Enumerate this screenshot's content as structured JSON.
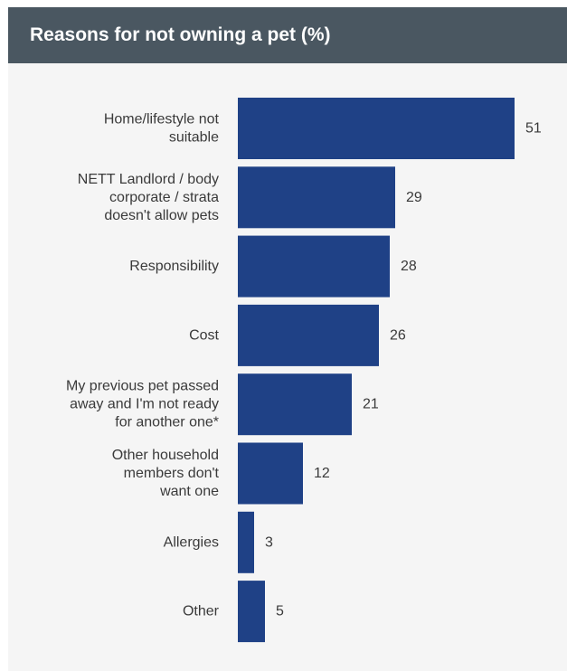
{
  "colors": {
    "header_background": "#4a5761",
    "panel_background": "#f5f5f5",
    "bar": "#1f4186",
    "text": "#3a3a3a"
  },
  "chart_data": {
    "type": "bar",
    "orientation": "horizontal",
    "title": "Reasons for not owning a pet (%)",
    "xlabel": "",
    "ylabel": "",
    "xlim": [
      0,
      55
    ],
    "grid": false,
    "legend": "none",
    "data_labels": true,
    "categories": [
      [
        "Home/lifestyle not",
        "suitable"
      ],
      [
        "NETT Landlord / body",
        "corporate / strata",
        "doesn't allow pets"
      ],
      [
        "Responsibility"
      ],
      [
        "Cost"
      ],
      [
        "My previous pet passed",
        "away and I'm not ready",
        "for another one*"
      ],
      [
        "Other household",
        "members don't",
        "want one"
      ],
      [
        "Allergies"
      ],
      [
        "Other"
      ]
    ],
    "values": [
      51,
      29,
      28,
      26,
      21,
      12,
      3,
      5
    ]
  }
}
